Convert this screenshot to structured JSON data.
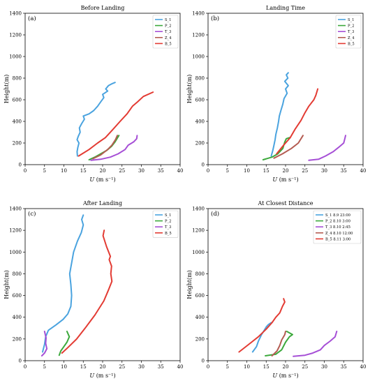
{
  "chart_data": [
    {
      "panel": "(a)",
      "title": "Before Landing",
      "type": "line",
      "xlabel_italic": "U",
      "xlabel_unit": "(m s⁻¹)",
      "ylabel": "Height(m)",
      "xlim": [
        0,
        40
      ],
      "ylim": [
        0,
        1400
      ],
      "xticks": [
        "0",
        "5",
        "10",
        "15",
        "20",
        "25",
        "30",
        "35",
        "40"
      ],
      "yticks": [
        "0",
        "200",
        "400",
        "600",
        "800",
        "1000",
        "1200",
        "1400"
      ],
      "legend_position": "top-right",
      "series": [
        {
          "name": "S_1",
          "color": "#4aa3df",
          "points": [
            [
              13.5,
              80
            ],
            [
              13.4,
              120
            ],
            [
              13.6,
              160
            ],
            [
              13.9,
              200
            ],
            [
              13.4,
              230
            ],
            [
              13.7,
              260
            ],
            [
              14.2,
              300
            ],
            [
              14.0,
              340
            ],
            [
              14.6,
              380
            ],
            [
              15.3,
              420
            ],
            [
              15.0,
              450
            ],
            [
              16.5,
              470
            ],
            [
              17.7,
              500
            ],
            [
              18.7,
              540
            ],
            [
              19.5,
              580
            ],
            [
              20.3,
              620
            ],
            [
              20.0,
              650
            ],
            [
              21.3,
              680
            ],
            [
              20.8,
              700
            ],
            [
              21.5,
              730
            ],
            [
              22.5,
              750
            ],
            [
              23.2,
              760
            ]
          ]
        },
        {
          "name": "P_2",
          "color": "#3ca93c",
          "points": [
            [
              16.5,
              45
            ],
            [
              18,
              70
            ],
            [
              19.5,
              100
            ],
            [
              21,
              130
            ],
            [
              22.3,
              170
            ],
            [
              23.2,
              210
            ],
            [
              24.2,
              270
            ]
          ]
        },
        {
          "name": "T_3",
          "color": "#a64fd6",
          "points": [
            [
              17.0,
              40
            ],
            [
              19.5,
              50
            ],
            [
              22.0,
              70
            ],
            [
              24.0,
              100
            ],
            [
              25.8,
              140
            ],
            [
              26.6,
              180
            ],
            [
              28.0,
              210
            ],
            [
              28.8,
              240
            ],
            [
              28.9,
              270
            ]
          ]
        },
        {
          "name": "Z_4",
          "color": "#b45c52",
          "points": [
            [
              17.5,
              55
            ],
            [
              19.5,
              90
            ],
            [
              21.3,
              140
            ],
            [
              22.4,
              180
            ],
            [
              23.3,
              230
            ],
            [
              23.8,
              270
            ]
          ]
        },
        {
          "name": "B_5",
          "color": "#e33b33",
          "points": [
            [
              13.8,
              80
            ],
            [
              16.5,
              140
            ],
            [
              18.7,
              200
            ],
            [
              20.7,
              250
            ],
            [
              22.5,
              320
            ],
            [
              24.5,
              400
            ],
            [
              26.3,
              470
            ],
            [
              27.7,
              540
            ],
            [
              29.0,
              580
            ],
            [
              30.5,
              630
            ],
            [
              33.0,
              670
            ]
          ]
        }
      ]
    },
    {
      "panel": "(b)",
      "title": "Landing Time",
      "type": "line",
      "xlabel_italic": "U",
      "xlabel_unit": "(m s⁻¹)",
      "ylabel": "Height(m)",
      "xlim": [
        0,
        40
      ],
      "ylim": [
        0,
        1400
      ],
      "xticks": [
        "0",
        "5",
        "10",
        "15",
        "20",
        "25",
        "30",
        "35",
        "40"
      ],
      "yticks": [
        "0",
        "200",
        "400",
        "600",
        "800",
        "1000",
        "1200",
        "1400"
      ],
      "legend_position": "top-right",
      "series": [
        {
          "name": "S_1",
          "color": "#4aa3df",
          "points": [
            [
              16.3,
              80
            ],
            [
              16.7,
              130
            ],
            [
              17.0,
              180
            ],
            [
              17.3,
              230
            ],
            [
              17.5,
              280
            ],
            [
              17.9,
              340
            ],
            [
              18.2,
              400
            ],
            [
              18.4,
              450
            ],
            [
              18.8,
              500
            ],
            [
              19.3,
              560
            ],
            [
              19.6,
              610
            ],
            [
              20.4,
              660
            ],
            [
              20.0,
              700
            ],
            [
              20.7,
              730
            ],
            [
              19.8,
              770
            ],
            [
              20.6,
              800
            ],
            [
              20.2,
              830
            ],
            [
              20.7,
              850
            ]
          ]
        },
        {
          "name": "P_2",
          "color": "#3ca93c",
          "points": [
            [
              14.2,
              45
            ],
            [
              16.5,
              70
            ],
            [
              18.0,
              100
            ],
            [
              19.3,
              150
            ],
            [
              19.8,
              210
            ],
            [
              20.2,
              240
            ],
            [
              21.0,
              250
            ]
          ]
        },
        {
          "name": "T_3",
          "color": "#a64fd6",
          "points": [
            [
              26.0,
              40
            ],
            [
              28.5,
              50
            ],
            [
              30.3,
              80
            ],
            [
              32.3,
              120
            ],
            [
              33.7,
              160
            ],
            [
              35.0,
              200
            ],
            [
              35.3,
              240
            ],
            [
              35.5,
              270
            ]
          ]
        },
        {
          "name": "Z_4",
          "color": "#b45c52",
          "points": [
            [
              17.0,
              60
            ],
            [
              19.2,
              100
            ],
            [
              21.5,
              150
            ],
            [
              23.3,
              200
            ],
            [
              24.5,
              270
            ]
          ]
        },
        {
          "name": "B_5",
          "color": "#e33b33",
          "points": [
            [
              17.7,
              100
            ],
            [
              19.5,
              180
            ],
            [
              21.2,
              250
            ],
            [
              22.5,
              330
            ],
            [
              24.0,
              410
            ],
            [
              25.0,
              480
            ],
            [
              26.0,
              540
            ],
            [
              27.3,
              600
            ],
            [
              27.8,
              640
            ],
            [
              28.3,
              700
            ]
          ]
        }
      ]
    },
    {
      "panel": "(c)",
      "title": "After Landing",
      "type": "line",
      "xlabel_italic": "U",
      "xlabel_unit": "(m s⁻¹)",
      "ylabel": "Height(m)",
      "xlim": [
        0,
        40
      ],
      "ylim": [
        0,
        1400
      ],
      "xticks": [
        "0",
        "5",
        "10",
        "15",
        "20",
        "25",
        "30",
        "35",
        "40"
      ],
      "yticks": [
        "0",
        "200",
        "400",
        "600",
        "800",
        "1000",
        "1200",
        "1400"
      ],
      "legend_position": "top-right",
      "series": [
        {
          "name": "S_1",
          "color": "#4aa3df",
          "points": [
            [
              4.5,
              80
            ],
            [
              5.0,
              150
            ],
            [
              5.3,
              220
            ],
            [
              6.0,
              280
            ],
            [
              8.0,
              330
            ],
            [
              9.8,
              380
            ],
            [
              11.0,
              430
            ],
            [
              11.8,
              500
            ],
            [
              12.0,
              600
            ],
            [
              11.8,
              700
            ],
            [
              11.5,
              800
            ],
            [
              12.0,
              900
            ],
            [
              12.5,
              1000
            ],
            [
              13.5,
              1100
            ],
            [
              14.5,
              1180
            ],
            [
              15.0,
              1250
            ],
            [
              14.6,
              1300
            ],
            [
              15.0,
              1340
            ]
          ]
        },
        {
          "name": "P_2",
          "color": "#3ca93c",
          "points": [
            [
              10.8,
              270
            ],
            [
              11.4,
              220
            ],
            [
              10.8,
              170
            ],
            [
              10.0,
              130
            ],
            [
              9.2,
              90
            ],
            [
              8.8,
              50
            ]
          ]
        },
        {
          "name": "T_3",
          "color": "#a64fd6",
          "points": [
            [
              4.3,
              45
            ],
            [
              5.0,
              70
            ],
            [
              5.6,
              110
            ],
            [
              5.3,
              160
            ],
            [
              5.4,
              210
            ],
            [
              5.0,
              270
            ]
          ]
        },
        {
          "name": "B_5",
          "color": "#e33b33",
          "points": [
            [
              9.5,
              70
            ],
            [
              11.0,
              120
            ],
            [
              13.3,
              200
            ],
            [
              15.5,
              300
            ],
            [
              18.0,
              420
            ],
            [
              20.3,
              550
            ],
            [
              21.5,
              650
            ],
            [
              22.4,
              730
            ],
            [
              22.1,
              800
            ],
            [
              22.3,
              870
            ],
            [
              21.7,
              930
            ],
            [
              22.0,
              960
            ],
            [
              21.0,
              1050
            ],
            [
              20.1,
              1150
            ],
            [
              20.4,
              1200
            ]
          ]
        }
      ]
    },
    {
      "panel": "(d)",
      "title": "At Closest Distance",
      "type": "line",
      "xlabel_italic": "U",
      "xlabel_unit": "(m s⁻¹)",
      "ylabel": "Height(m)",
      "xlim": [
        0,
        40
      ],
      "ylim": [
        0,
        1400
      ],
      "xticks": [
        "0",
        "5",
        "10",
        "15",
        "20",
        "25",
        "30",
        "35",
        "40"
      ],
      "yticks": [
        "0",
        "200",
        "400",
        "600",
        "800",
        "1000",
        "1200",
        "1400"
      ],
      "legend_position": "top-right",
      "series": [
        {
          "name": "S_1",
          "date": "8.9 23:00",
          "color": "#4aa3df",
          "points": [
            [
              11.5,
              80
            ],
            [
              12.5,
              130
            ],
            [
              13.0,
              180
            ],
            [
              13.8,
              240
            ],
            [
              14.5,
              280
            ],
            [
              15.0,
              310
            ],
            [
              15.5,
              330
            ],
            [
              16.3,
              350
            ]
          ]
        },
        {
          "name": "P_2",
          "date": "8.10 3:00",
          "color": "#3ca93c",
          "points": [
            [
              14.8,
              45
            ],
            [
              17.5,
              60
            ],
            [
              19.0,
              100
            ],
            [
              20.0,
              170
            ],
            [
              21.0,
              220
            ],
            [
              21.8,
              240
            ],
            [
              20.3,
              270
            ]
          ]
        },
        {
          "name": "T_3",
          "date": "8.10 2:45",
          "color": "#a64fd6",
          "points": [
            [
              22.0,
              40
            ],
            [
              25.0,
              50
            ],
            [
              27.0,
              70
            ],
            [
              29.0,
              100
            ],
            [
              30.0,
              140
            ],
            [
              31.5,
              180
            ],
            [
              32.8,
              220
            ],
            [
              33.2,
              270
            ]
          ]
        },
        {
          "name": "Z_4",
          "date": "8.10 12:00",
          "color": "#b45c52",
          "points": [
            [
              16.5,
              45
            ],
            [
              17.8,
              90
            ],
            [
              18.5,
              140
            ],
            [
              19.0,
              190
            ],
            [
              19.8,
              240
            ],
            [
              20.0,
              270
            ]
          ]
        },
        {
          "name": "B_5",
          "date": "8.11 3:00",
          "color": "#e33b33",
          "points": [
            [
              8.0,
              80
            ],
            [
              10.5,
              150
            ],
            [
              13.0,
              220
            ],
            [
              15.0,
              290
            ],
            [
              16.5,
              350
            ],
            [
              17.5,
              400
            ],
            [
              18.5,
              440
            ],
            [
              19.2,
              500
            ],
            [
              19.8,
              540
            ],
            [
              19.5,
              570
            ]
          ]
        }
      ]
    }
  ]
}
